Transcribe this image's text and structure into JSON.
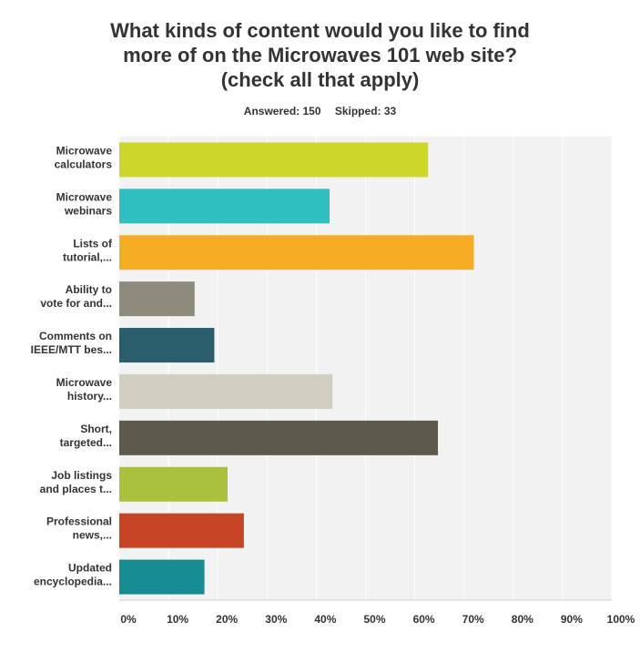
{
  "header": {
    "title_lines": [
      "What kinds of content would you like to find",
      "more of on the Microwaves 101 web site?",
      "(check all that apply)"
    ],
    "answered": "Answered: 150",
    "skipped": "Skipped: 33"
  },
  "chart_data": {
    "type": "bar",
    "orientation": "horizontal",
    "title": "What kinds of content would you like to find more of on the Microwaves 101 web site? (check all that apply)",
    "categories": [
      [
        "Microwave",
        "calculators"
      ],
      [
        "Microwave",
        "webinars"
      ],
      [
        "Lists of",
        "tutorial,..."
      ],
      [
        "Ability to",
        "vote for and..."
      ],
      [
        "Comments on",
        "IEEE/MTT bes..."
      ],
      [
        "Microwave",
        "history..."
      ],
      [
        "Short,",
        "targeted..."
      ],
      [
        "Job listings",
        "and places t..."
      ],
      [
        "Professional",
        "news,..."
      ],
      [
        "Updated",
        "encyclopedia..."
      ]
    ],
    "values": [
      62.7,
      42.7,
      72.0,
      15.3,
      19.3,
      43.3,
      64.7,
      22.0,
      25.3,
      17.3
    ],
    "colors": [
      "#cdd62a",
      "#2ebfc1",
      "#f6ad23",
      "#8c8b7c",
      "#2b5e6c",
      "#d0cec1",
      "#5c5a4d",
      "#a9c13b",
      "#c64527",
      "#168c91"
    ],
    "xlim": [
      0,
      100
    ],
    "xticks": [
      "0%",
      "10%",
      "20%",
      "30%",
      "40%",
      "50%",
      "60%",
      "70%",
      "80%",
      "90%",
      "100%"
    ],
    "grid": true
  }
}
